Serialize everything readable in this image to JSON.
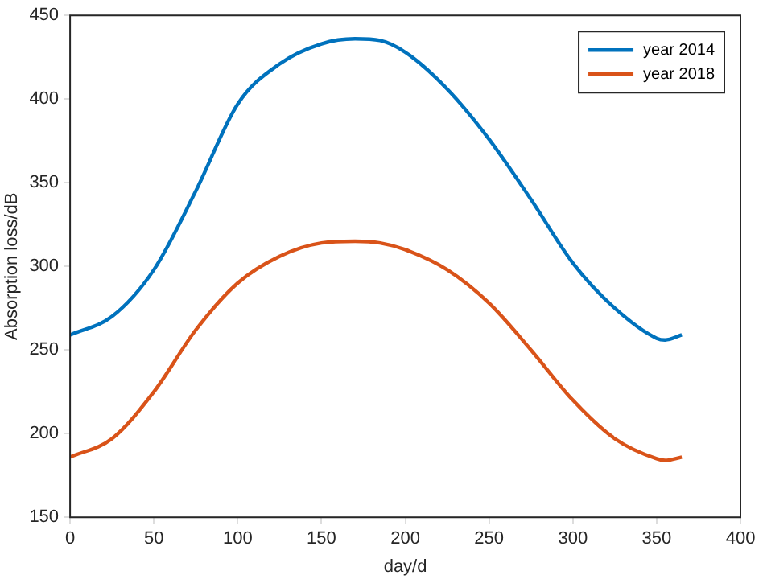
{
  "chart_data": {
    "type": "line",
    "xlabel": "day/d",
    "ylabel": "Absorption loss/dB",
    "x": [
      0,
      25,
      50,
      75,
      100,
      125,
      150,
      170,
      185,
      200,
      225,
      250,
      275,
      300,
      325,
      350,
      355,
      365
    ],
    "series": [
      {
        "name": "year 2014",
        "color": "#0072bd",
        "values": [
          259,
          270,
          298,
          345,
          397,
          421,
          433,
          436,
          435,
          428,
          406,
          376,
          340,
          302,
          275,
          257,
          256,
          259
        ]
      },
      {
        "name": "year 2018",
        "color": "#d95319",
        "values": [
          186,
          197,
          225,
          262,
          290,
          306,
          314,
          315,
          314,
          310,
          298,
          278,
          250,
          220,
          197,
          185,
          184,
          186
        ]
      }
    ],
    "xlim": [
      0,
      400
    ],
    "xticks": [
      0,
      50,
      100,
      150,
      200,
      250,
      300,
      350,
      400
    ],
    "ylim": [
      150,
      450
    ],
    "yticks": [
      150,
      200,
      250,
      300,
      350,
      400,
      450
    ],
    "grid": false,
    "legend": "top right",
    "marker": "none",
    "line_style": "solid"
  }
}
